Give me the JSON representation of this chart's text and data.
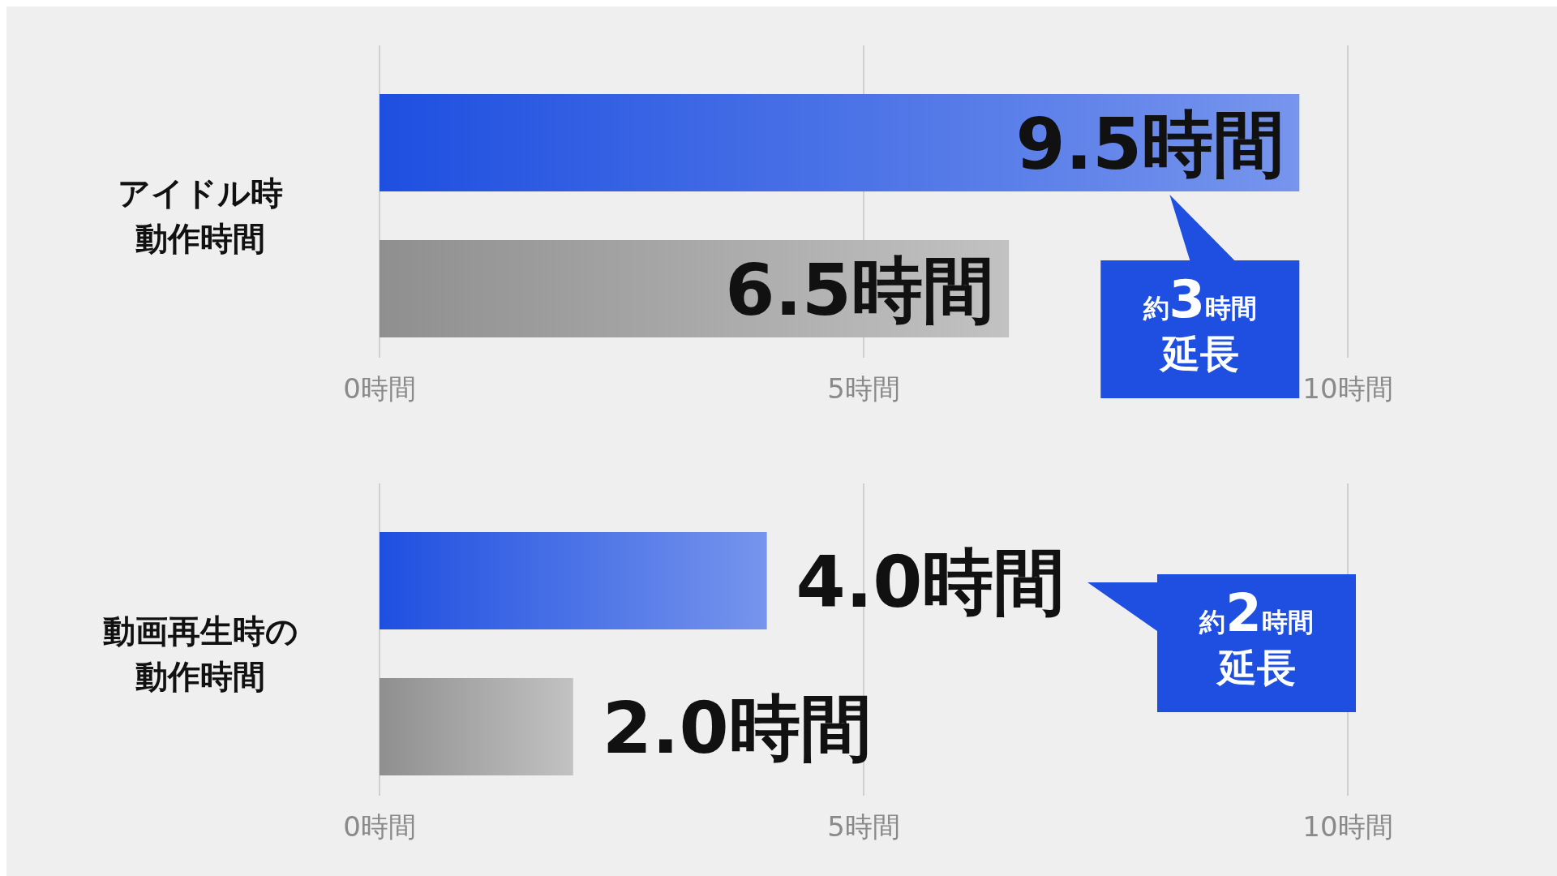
{
  "chart_data": [
    {
      "type": "bar",
      "orientation": "horizontal",
      "categories": [
        "アイドル時動作時間"
      ],
      "series": [
        {
          "color": "#1e4fe0",
          "values": [
            9.5
          ],
          "value_labels": [
            "9.5時間"
          ]
        },
        {
          "color": "#8f8f8f",
          "values": [
            6.5
          ],
          "value_labels": [
            "6.5時間"
          ]
        }
      ],
      "xlim": [
        0,
        10
      ],
      "xticks": [
        {
          "value": 0,
          "label": "0時間"
        },
        {
          "value": 5,
          "label": "5時間"
        },
        {
          "value": 10,
          "label": "10時間"
        }
      ],
      "grid": "x",
      "annotations": [
        "約3時間延長"
      ]
    },
    {
      "type": "bar",
      "orientation": "horizontal",
      "categories": [
        "動画再生時の動作時間"
      ],
      "series": [
        {
          "color": "#1e4fe0",
          "values": [
            4.0
          ],
          "value_labels": [
            "4.0時間"
          ]
        },
        {
          "color": "#8f8f8f",
          "values": [
            2.0
          ],
          "value_labels": [
            "2.0時間"
          ]
        }
      ],
      "xlim": [
        0,
        10
      ],
      "xticks": [
        {
          "value": 0,
          "label": "0時間"
        },
        {
          "value": 5,
          "label": "5時間"
        },
        {
          "value": 10,
          "label": "10時間"
        }
      ],
      "grid": "x",
      "annotations": [
        "約2時間延長"
      ]
    }
  ]
}
